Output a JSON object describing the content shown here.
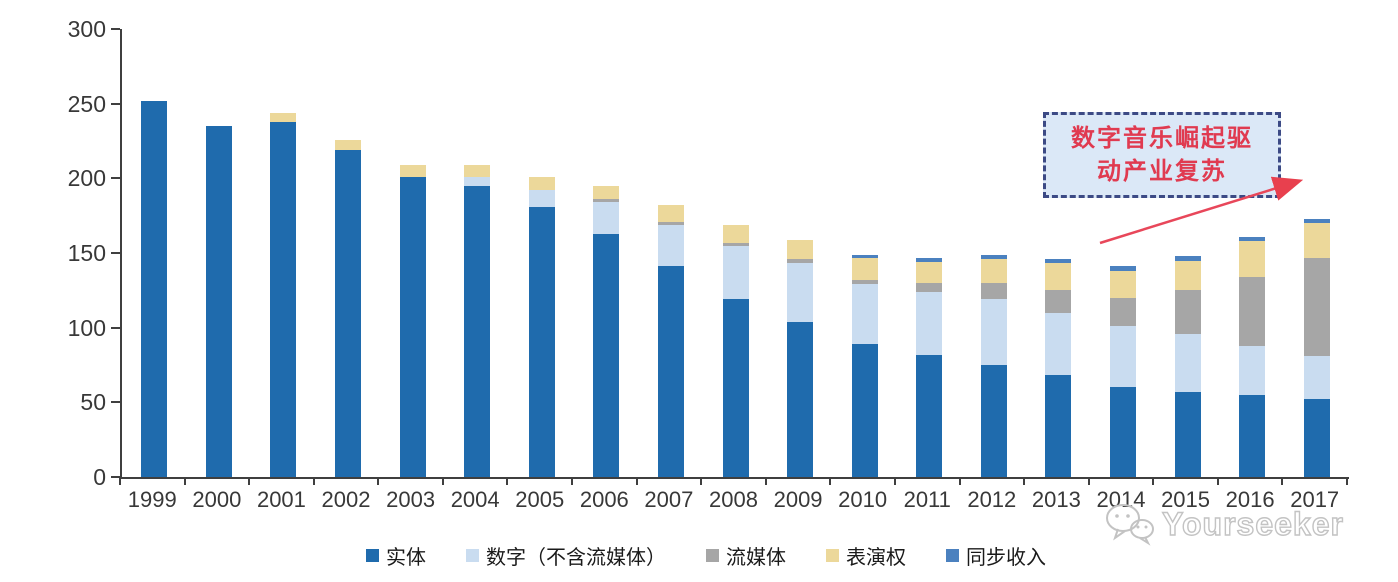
{
  "chart_data": {
    "type": "bar",
    "stacked": true,
    "title": "",
    "xlabel": "",
    "ylabel": "",
    "categories": [
      "1999",
      "2000",
      "2001",
      "2002",
      "2003",
      "2004",
      "2005",
      "2006",
      "2007",
      "2008",
      "2009",
      "2010",
      "2011",
      "2012",
      "2013",
      "2014",
      "2015",
      "2016",
      "2017"
    ],
    "series": [
      {
        "name": "实体",
        "color": "#1f6bad",
        "values": [
          252,
          235,
          238,
          219,
          201,
          195,
          181,
          163,
          141,
          119,
          104,
          89,
          82,
          75,
          68,
          60,
          57,
          55,
          52
        ]
      },
      {
        "name": "数字（不含流媒体）",
        "color": "#c9dcf0",
        "values": [
          0,
          0,
          0,
          0,
          0,
          6,
          11,
          21,
          28,
          36,
          39,
          40,
          42,
          44,
          42,
          41,
          39,
          33,
          29
        ]
      },
      {
        "name": "流媒体",
        "color": "#a6a6a6",
        "values": [
          0,
          0,
          0,
          0,
          0,
          0,
          0,
          2,
          2,
          2,
          3,
          3,
          6,
          11,
          15,
          19,
          29,
          46,
          66
        ]
      },
      {
        "name": "表演权",
        "color": "#ecd89a",
        "values": [
          0,
          0,
          6,
          7,
          8,
          8,
          9,
          9,
          11,
          12,
          13,
          15,
          14,
          16,
          18,
          18,
          20,
          24,
          23
        ]
      },
      {
        "name": "同步收入",
        "color": "#4b81bf",
        "values": [
          0,
          0,
          0,
          0,
          0,
          0,
          0,
          0,
          0,
          0,
          0,
          2,
          3,
          3,
          3,
          3,
          3,
          3,
          3
        ]
      }
    ],
    "ylim": [
      0,
      300
    ],
    "yticks": [
      0,
      50,
      100,
      150,
      200,
      250,
      300
    ],
    "grid": false,
    "legend_position": "bottom"
  },
  "annotation": {
    "text": "数字音乐崛起驱动产业复苏",
    "line1": "数字音乐崛起驱",
    "line2": "动产业复苏",
    "text_color": "#e03a50",
    "border_color": "#3c4a85",
    "fill_color": "#dbe8f7",
    "arrow_color": "#e84a5a"
  },
  "watermark": {
    "text": "Yourseeker",
    "icon": "wechat-icon",
    "color": "#c3c3c3"
  }
}
